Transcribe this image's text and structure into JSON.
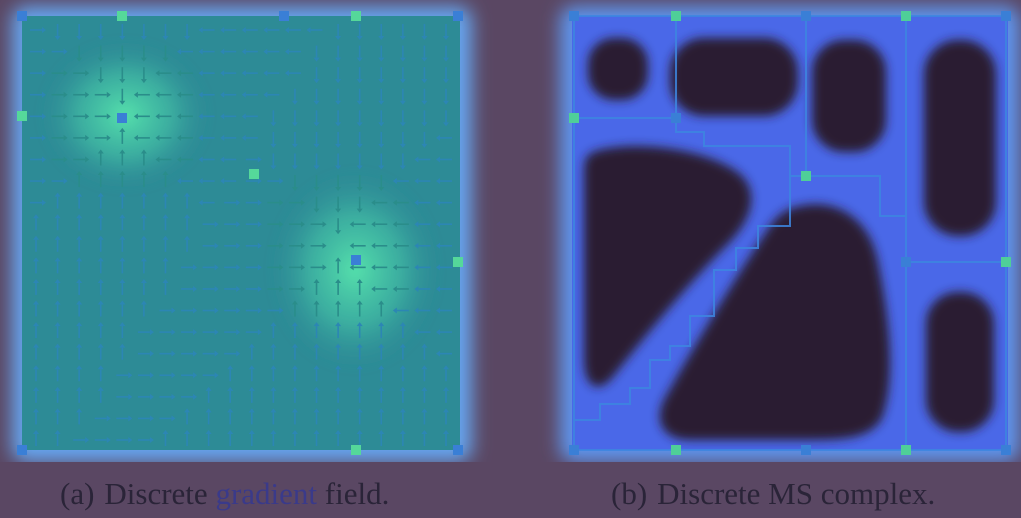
{
  "figure": {
    "panel_a": {
      "caption_tag": "(a)",
      "caption_pre": "Discrete",
      "caption_highlight": "gradient",
      "caption_post": "field.",
      "grid_size": 20,
      "maxima_cells": [
        [
          4,
          4
        ],
        [
          14,
          10
        ]
      ]
    },
    "panel_b": {
      "caption_tag": "(b)",
      "caption_text": "Discrete MS complex."
    }
  },
  "colors": {
    "background": "#5a4763",
    "halo": "#6aa8f2",
    "field": "#2f8f96",
    "bright": "#4fe0a8",
    "arrow": "#2c86b4",
    "arrow_bright": "#2a8d8a",
    "complex_fill": "#2c1a30",
    "complex_halo": "#4a62e6",
    "arc": "#3aa0d8",
    "node": "#5ad4a8",
    "node_dark": "#3b8fe0"
  }
}
